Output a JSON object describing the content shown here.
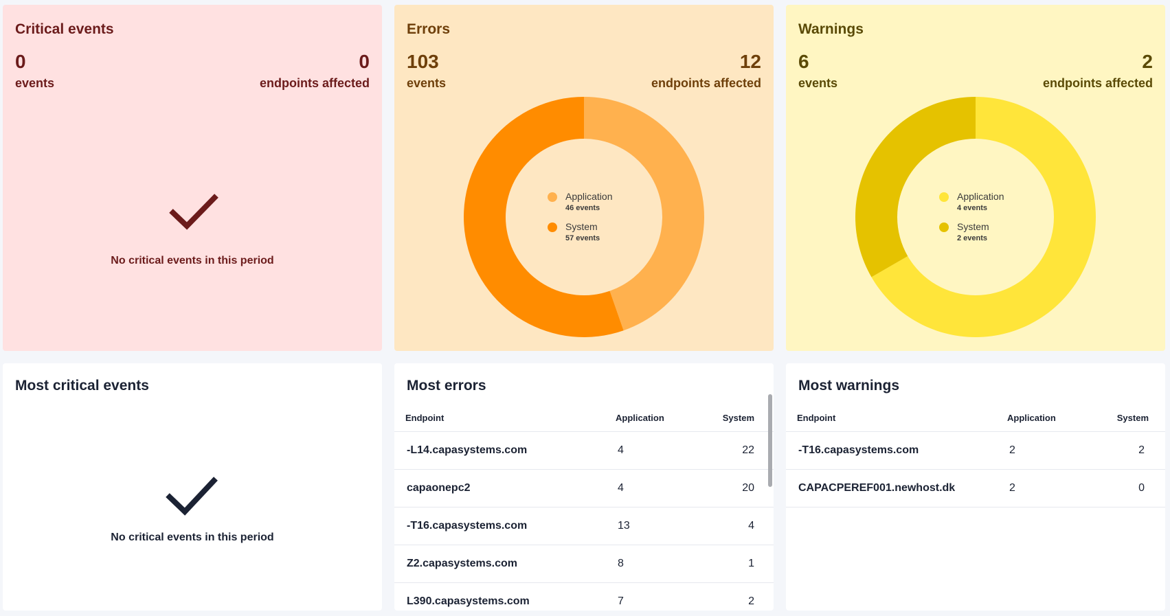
{
  "colors": {
    "critical_bg": "#ffe1e1",
    "critical_text": "#6b1b1b",
    "errors_bg": "#fee7c2",
    "errors_application": "#ffb14e",
    "errors_system": "#ff8c00",
    "warnings_bg": "#fff6c2",
    "warnings_application": "#ffe53a",
    "warnings_system": "#e5c200"
  },
  "critical": {
    "title": "Critical events",
    "events": "0",
    "events_label": "events",
    "endpoints": "0",
    "endpoints_label": "endpoints affected",
    "empty_message": "No critical events in this period",
    "icon": "check-icon"
  },
  "errors": {
    "title": "Errors",
    "events": "103",
    "events_label": "events",
    "endpoints": "12",
    "endpoints_label": "endpoints affected",
    "legend": [
      {
        "name": "Application",
        "value": "46 events",
        "count": 46
      },
      {
        "name": "System",
        "value": "57 events",
        "count": 57
      }
    ]
  },
  "warnings": {
    "title": "Warnings",
    "events": "6",
    "events_label": "events",
    "endpoints": "2",
    "endpoints_label": "endpoints affected",
    "legend": [
      {
        "name": "Application",
        "value": "4 events",
        "count": 4
      },
      {
        "name": "System",
        "value": "2 events",
        "count": 2
      }
    ]
  },
  "most_critical": {
    "title": "Most critical events",
    "empty_message": "No critical events in this period",
    "icon": "check-icon"
  },
  "most_errors": {
    "title": "Most errors",
    "headers": {
      "endpoint": "Endpoint",
      "application": "Application",
      "system": "System"
    },
    "rows": [
      {
        "endpoint": "-L14.capasystems.com",
        "application": "4",
        "system": "22"
      },
      {
        "endpoint": "capaonepc2",
        "application": "4",
        "system": "20"
      },
      {
        "endpoint": "-T16.capasystems.com",
        "application": "13",
        "system": "4"
      },
      {
        "endpoint": "Z2.capasystems.com",
        "application": "8",
        "system": "1"
      },
      {
        "endpoint": "L390.capasystems.com",
        "application": "7",
        "system": "2"
      }
    ]
  },
  "most_warnings": {
    "title": "Most warnings",
    "headers": {
      "endpoint": "Endpoint",
      "application": "Application",
      "system": "System"
    },
    "rows": [
      {
        "endpoint": "-T16.capasystems.com",
        "application": "2",
        "system": "2"
      },
      {
        "endpoint": "CAPACPEREF001.newhost.dk",
        "application": "2",
        "system": "0"
      }
    ]
  }
}
